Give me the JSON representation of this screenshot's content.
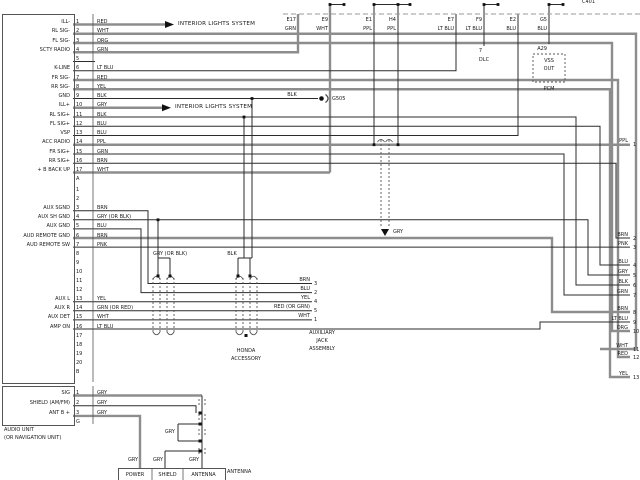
{
  "diagram": {
    "title_partial_top_right": "C401",
    "interior_lights_label": "INTERIOR LIGHTS SYSTEM",
    "unit_caption": [
      "AUDIO UNIT",
      "(OR NAVIGATION UNIT)"
    ],
    "ground": {
      "wire_color": "BLK",
      "label": "G505"
    },
    "main_connector_pins": [
      {
        "num": "1",
        "label": "ILL-",
        "color": "RED"
      },
      {
        "num": "2",
        "label": "RL SIG-",
        "color": "WHT"
      },
      {
        "num": "3",
        "label": "FL SIG-",
        "color": "ORG"
      },
      {
        "num": "4",
        "label": "SCTY RADIO",
        "color": "GRN"
      },
      {
        "num": "5",
        "label": "",
        "color": ""
      },
      {
        "num": "6",
        "label": "K-LINE",
        "color": "LT BLU"
      },
      {
        "num": "7",
        "label": "FR SIG-",
        "color": "RED"
      },
      {
        "num": "8",
        "label": "RR SIG-",
        "color": "YEL"
      },
      {
        "num": "9",
        "label": "GND",
        "color": "BLK"
      },
      {
        "num": "10",
        "label": "ILL+",
        "color": "GRY"
      },
      {
        "num": "11",
        "label": "RL SIG+",
        "color": "BLK"
      },
      {
        "num": "12",
        "label": "FL SIG+",
        "color": "BLU"
      },
      {
        "num": "13",
        "label": "VSP",
        "color": "BLU"
      },
      {
        "num": "14",
        "label": "ACC RADIO",
        "color": "PPL"
      },
      {
        "num": "15",
        "label": "FR SIG+",
        "color": "GRN"
      },
      {
        "num": "16",
        "label": "RR SIG+",
        "color": "BRN"
      },
      {
        "num": "17",
        "label": "+ B BACK UP",
        "color": "WHT"
      },
      {
        "num": "A",
        "label": "",
        "color": ""
      }
    ],
    "aux_connector_pins": [
      {
        "num": "1",
        "label": "",
        "color": ""
      },
      {
        "num": "2",
        "label": "",
        "color": ""
      },
      {
        "num": "3",
        "label": "AUX SGND",
        "color": "BRN"
      },
      {
        "num": "4",
        "label": "AUX SH GND",
        "color": "GRY (OR BLK)"
      },
      {
        "num": "5",
        "label": "AUX GND",
        "color": "BLU"
      },
      {
        "num": "6",
        "label": "AUD REMOTE GND",
        "color": "BRN"
      },
      {
        "num": "7",
        "label": "AUD REMOTE SW",
        "color": "PNK"
      },
      {
        "num": "8",
        "label": "",
        "color": ""
      },
      {
        "num": "9",
        "label": "",
        "color": ""
      },
      {
        "num": "10",
        "label": "",
        "color": ""
      },
      {
        "num": "11",
        "label": "",
        "color": ""
      },
      {
        "num": "12",
        "label": "",
        "color": ""
      },
      {
        "num": "13",
        "label": "AUX L",
        "color": "YEL"
      },
      {
        "num": "14",
        "label": "AUX R",
        "color": "GRN (OR RED)"
      },
      {
        "num": "15",
        "label": "AUX DET",
        "color": "WHT"
      },
      {
        "num": "16",
        "label": "AMP ON",
        "color": "LT BLU"
      },
      {
        "num": "17",
        "label": "",
        "color": ""
      },
      {
        "num": "18",
        "label": "",
        "color": ""
      },
      {
        "num": "19",
        "label": "",
        "color": ""
      },
      {
        "num": "20",
        "label": "",
        "color": ""
      },
      {
        "num": "B",
        "label": "",
        "color": ""
      }
    ],
    "antenna_connector_pins": [
      {
        "num": "1",
        "label": "SIG",
        "color": "GRY"
      },
      {
        "num": "2",
        "label": "SHIELD (AM/FM)",
        "color": "GRY"
      },
      {
        "num": "3",
        "label": "ANT B +",
        "color": "GRY"
      },
      {
        "num": "G",
        "label": "",
        "color": ""
      }
    ],
    "top_connectors": [
      {
        "id": "E17",
        "color": "GRN"
      },
      {
        "id": "E9",
        "color": "WHT"
      },
      {
        "id": "E1",
        "color": "PPL"
      },
      {
        "id": "H4",
        "color": "PPL"
      },
      {
        "id": "E7",
        "color": "LT BLU"
      },
      {
        "id": "F9",
        "color": "LT BLU"
      },
      {
        "id": "E2",
        "color": "BLU"
      },
      {
        "id": "G5",
        "color": "BLU"
      }
    ],
    "dlc": {
      "pin": "7",
      "label": "DLC"
    },
    "pcm": {
      "pin": "A29",
      "box": [
        "VSS",
        "OUT"
      ],
      "label": "PCM"
    },
    "right_exits": [
      {
        "num": "1",
        "color": "PPL"
      },
      {
        "num": "2",
        "color": "BRN"
      },
      {
        "num": "3",
        "color": "PNK"
      },
      {
        "num": "4",
        "color": "BLU"
      },
      {
        "num": "5",
        "color": "GRY"
      },
      {
        "num": "6",
        "color": "BLK"
      },
      {
        "num": "7",
        "color": "GRN"
      },
      {
        "num": "8",
        "color": "BRN"
      },
      {
        "num": "9",
        "color": "LT BLU"
      },
      {
        "num": "10",
        "color": "ORG"
      },
      {
        "num": "11",
        "color": "WHT"
      },
      {
        "num": "12",
        "color": "RED"
      },
      {
        "num": "13",
        "color": "YEL"
      }
    ],
    "shield_wires": {
      "left": "GRY (OR BLK)",
      "right": "BLK",
      "drain": "GRY"
    },
    "jack": {
      "wires": [
        {
          "color": "BRN",
          "num": "3"
        },
        {
          "color": "BLU",
          "num": "2"
        },
        {
          "color": "YEL",
          "num": "4"
        },
        {
          "color": "RED (OR GRN)",
          "num": "5"
        },
        {
          "color": "WHT",
          "num": "1"
        }
      ],
      "assembly_caption": [
        "AUXILIARY",
        "JACK",
        "ASSEMBLY"
      ],
      "accessory_caption": [
        "HONDA",
        "ACCESSORY"
      ]
    },
    "antenna": {
      "jumper_color": "GRY",
      "lead_colors": [
        "GRY",
        "GRY",
        "GRY"
      ],
      "box_pins": [
        "POWER",
        "SHIELD",
        "ANTENNA"
      ],
      "side_label": "ANTENNA"
    }
  }
}
